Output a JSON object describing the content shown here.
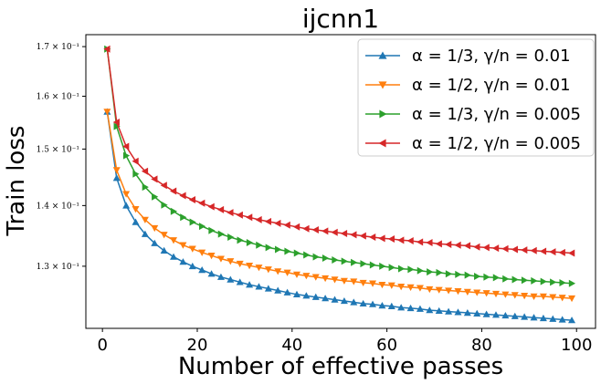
{
  "chart_data": {
    "type": "line",
    "title": "ijcnn1",
    "xlabel": "Number of effective passes",
    "ylabel": "Train loss",
    "xlim": [
      -3.5,
      104
    ],
    "ylim": [
      0.1205,
      0.1725
    ],
    "yscale": "log",
    "grid": false,
    "legend_position": "top-right",
    "x_ticks": [
      0,
      20,
      40,
      60,
      80,
      100
    ],
    "x_tick_labels": [
      "0",
      "20",
      "40",
      "60",
      "80",
      "100"
    ],
    "y_ticks": [
      0.13,
      0.14,
      0.15,
      0.16,
      0.17
    ],
    "y_tick_labels": [
      "1.3 × 10⁻¹",
      "1.4 × 10⁻¹",
      "1.5 × 10⁻¹",
      "1.6 × 10⁻¹",
      "1.7 × 10⁻¹"
    ],
    "series": [
      {
        "name": "α = 1/3, γ/n = 0.01",
        "color": "#1f77b4",
        "marker": "triangle-up",
        "x": [
          1,
          3,
          5,
          7,
          9,
          11,
          13,
          15,
          17,
          19,
          21,
          23,
          25,
          27,
          29,
          31,
          33,
          35,
          37,
          39,
          41,
          43,
          45,
          47,
          49,
          51,
          53,
          55,
          57,
          59,
          61,
          63,
          65,
          67,
          69,
          71,
          73,
          75,
          77,
          79,
          81,
          83,
          85,
          87,
          89,
          91,
          93,
          95,
          97,
          99
        ],
        "values": [
          0.157,
          0.1448,
          0.14,
          0.1372,
          0.1352,
          0.1337,
          0.1325,
          0.1315,
          0.1307,
          0.13,
          0.1294,
          0.1288,
          0.1283,
          0.1279,
          0.1275,
          0.1271,
          0.1268,
          0.1265,
          0.1262,
          0.1259,
          0.1256,
          0.1254,
          0.1252,
          0.125,
          0.1248,
          0.1246,
          0.1244,
          0.1242,
          0.1241,
          0.1239,
          0.1238,
          0.1236,
          0.1235,
          0.1234,
          0.1232,
          0.1231,
          0.123,
          0.1229,
          0.1228,
          0.1227,
          0.1226,
          0.1225,
          0.1224,
          0.1223,
          0.1222,
          0.1221,
          0.122,
          0.1219,
          0.1218,
          0.1217
        ]
      },
      {
        "name": "α = 1/2, γ/n = 0.01",
        "color": "#ff7f0e",
        "marker": "triangle-down",
        "x": [
          1,
          3,
          5,
          7,
          9,
          11,
          13,
          15,
          17,
          19,
          21,
          23,
          25,
          27,
          29,
          31,
          33,
          35,
          37,
          39,
          41,
          43,
          45,
          47,
          49,
          51,
          53,
          55,
          57,
          59,
          61,
          63,
          65,
          67,
          69,
          71,
          73,
          75,
          77,
          79,
          81,
          83,
          85,
          87,
          89,
          91,
          93,
          95,
          97,
          99
        ],
        "values": [
          0.157,
          0.1462,
          0.142,
          0.1394,
          0.1376,
          0.1362,
          0.1351,
          0.1342,
          0.1334,
          0.1328,
          0.1322,
          0.1317,
          0.1312,
          0.1308,
          0.1304,
          0.1301,
          0.1298,
          0.1295,
          0.1292,
          0.129,
          0.1287,
          0.1285,
          0.1283,
          0.1281,
          0.1279,
          0.1277,
          0.1276,
          0.1274,
          0.1273,
          0.1271,
          0.127,
          0.1268,
          0.1267,
          0.1266,
          0.1264,
          0.1263,
          0.1262,
          0.1261,
          0.126,
          0.1259,
          0.1258,
          0.1257,
          0.1256,
          0.1255,
          0.1254,
          0.1253,
          0.1253,
          0.1252,
          0.1251,
          0.125
        ]
      },
      {
        "name": "α = 1/3, γ/n = 0.005",
        "color": "#2ca02c",
        "marker": "triangle-right",
        "x": [
          1,
          3,
          5,
          7,
          9,
          11,
          13,
          15,
          17,
          19,
          21,
          23,
          25,
          27,
          29,
          31,
          33,
          35,
          37,
          39,
          41,
          43,
          45,
          47,
          49,
          51,
          53,
          55,
          57,
          59,
          61,
          63,
          65,
          67,
          69,
          71,
          73,
          75,
          77,
          79,
          81,
          83,
          85,
          87,
          89,
          91,
          93,
          95,
          97,
          99
        ],
        "values": [
          0.1695,
          0.1542,
          0.1488,
          0.1455,
          0.1432,
          0.1415,
          0.1401,
          0.139,
          0.138,
          0.1372,
          0.1365,
          0.1358,
          0.1352,
          0.1347,
          0.1342,
          0.1338,
          0.1334,
          0.133,
          0.1327,
          0.1324,
          0.1321,
          0.1318,
          0.1315,
          0.1313,
          0.131,
          0.1308,
          0.1306,
          0.1304,
          0.1302,
          0.13,
          0.1298,
          0.1296,
          0.1295,
          0.1293,
          0.1291,
          0.129,
          0.1288,
          0.1287,
          0.1286,
          0.1284,
          0.1283,
          0.1282,
          0.128,
          0.1279,
          0.1278,
          0.1277,
          0.1276,
          0.1275,
          0.1274,
          0.1273
        ]
      },
      {
        "name": "α = 1/2, γ/n = 0.005",
        "color": "#d62728",
        "marker": "triangle-left",
        "x": [
          1,
          3,
          5,
          7,
          9,
          11,
          13,
          15,
          17,
          19,
          21,
          23,
          25,
          27,
          29,
          31,
          33,
          35,
          37,
          39,
          41,
          43,
          45,
          47,
          49,
          51,
          53,
          55,
          57,
          59,
          61,
          63,
          65,
          67,
          69,
          71,
          73,
          75,
          77,
          79,
          81,
          83,
          85,
          87,
          89,
          91,
          93,
          95,
          97,
          99
        ],
        "values": [
          0.1695,
          0.155,
          0.1505,
          0.1478,
          0.146,
          0.1446,
          0.1435,
          0.1425,
          0.1417,
          0.141,
          0.1404,
          0.1398,
          0.1393,
          0.1388,
          0.1384,
          0.138,
          0.1376,
          0.1373,
          0.137,
          0.1367,
          0.1364,
          0.1361,
          0.1359,
          0.1357,
          0.1355,
          0.1353,
          0.1351,
          0.1349,
          0.1347,
          0.1345,
          0.1344,
          0.1342,
          0.1341,
          0.1339,
          0.1338,
          0.1336,
          0.1335,
          0.1334,
          0.1333,
          0.1331,
          0.133,
          0.1329,
          0.1328,
          0.1327,
          0.1326,
          0.1325,
          0.1324,
          0.1323,
          0.1322,
          0.1321
        ]
      }
    ]
  }
}
